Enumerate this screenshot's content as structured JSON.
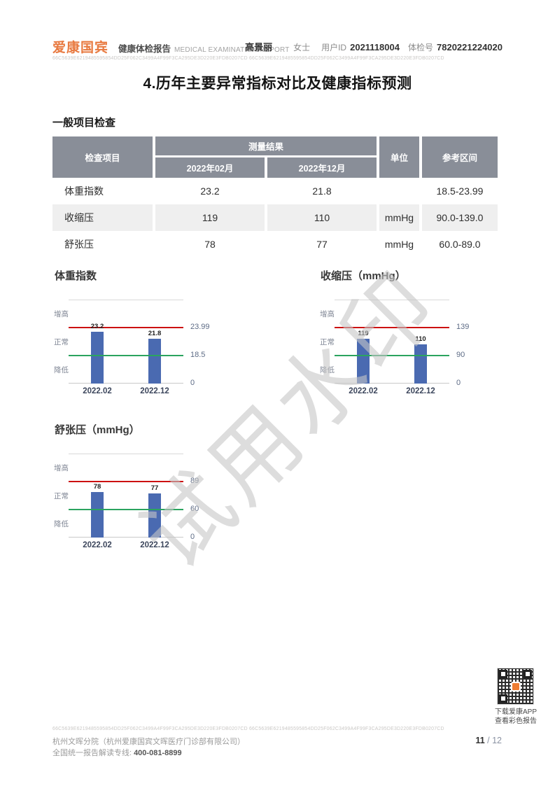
{
  "header": {
    "logo": "爱康国宾",
    "report_title": "健康体检报告",
    "report_title_en": "MEDICAL EXAMINATION REPORT",
    "patient_name": "高景丽",
    "gender": "女士",
    "user_id_label": "用户ID",
    "user_id": "2021118004",
    "exam_no_label": "体检号",
    "exam_no": "7820221224020",
    "hash_line": "66C5639E6219485595854DD25F062C3499A4F99F3CA295DE3D220E3FDB0207CD 66C5639E6219485595854DD25F062C3499A4F99F3CA295DE3D220E3FDB0207CD"
  },
  "page_title": "4.历年主要异常指标对比及健康指标预测",
  "section_title": "一般项目检查",
  "table": {
    "headers": {
      "item": "检查项目",
      "result": "测量结果",
      "date1": "2022年02月",
      "date2": "2022年12月",
      "unit": "单位",
      "range": "参考区间"
    },
    "rows": [
      {
        "name": "体重指数",
        "v1": "23.2",
        "v2": "21.8",
        "unit": "",
        "range": "18.5-23.99"
      },
      {
        "name": "收缩压",
        "v1": "119",
        "v2": "110",
        "unit": "mmHg",
        "range": "90.0-139.0"
      },
      {
        "name": "舒张压",
        "v1": "78",
        "v2": "77",
        "unit": "mmHg",
        "range": "60.0-89.0"
      }
    ]
  },
  "chart_data": [
    {
      "type": "bar",
      "title": "体重指数",
      "categories": [
        "2022.02",
        "2022.12"
      ],
      "values": [
        23.2,
        21.8
      ],
      "value_labels": [
        "23.2",
        "21.8"
      ],
      "ref_high": 23.99,
      "ref_low": 18.5,
      "ref_high_label": "23.99",
      "ref_low_label": "18.5",
      "baseline_label": "0",
      "band_labels": [
        "增高",
        "正常",
        "降低"
      ],
      "legend_position": "none",
      "grid": "top-and-baseline"
    },
    {
      "type": "bar",
      "title": "收缩压（mmHg）",
      "categories": [
        "2022.02",
        "2022.12"
      ],
      "values": [
        119,
        110
      ],
      "value_labels": [
        "119",
        "110"
      ],
      "ref_high": 139,
      "ref_low": 90,
      "ref_high_label": "139",
      "ref_low_label": "90",
      "baseline_label": "0",
      "band_labels": [
        "增高",
        "正常",
        "降低"
      ],
      "legend_position": "none",
      "grid": "top-and-baseline"
    },
    {
      "type": "bar",
      "title": "舒张压（mmHg）",
      "categories": [
        "2022.02",
        "2022.12"
      ],
      "values": [
        78,
        77
      ],
      "value_labels": [
        "78",
        "77"
      ],
      "ref_high": 89,
      "ref_low": 60,
      "ref_high_label": "89",
      "ref_low_label": "60",
      "baseline_label": "0",
      "band_labels": [
        "增高",
        "正常",
        "降低"
      ],
      "legend_position": "none",
      "grid": "top-and-baseline"
    }
  ],
  "watermark": "试用水印",
  "footer": {
    "hash_line": "66C5639E6219485595854DD25F062C3499A4F99F3CA295DE3D220E3FDB0207CD  66C5639E6219485595854DD25F062C3499A4F99F3CA295DE3D220E3FDB0207CD",
    "qr_caption_line1": "下载爱康APP",
    "qr_caption_line2": "查看彩色报告",
    "branch": "杭州文晖分院（杭州爱康国宾文晖医疗门诊部有限公司）",
    "hotline_label": "全国统一报告解读专线:",
    "hotline_number": "400-081-8899",
    "page_current": "11",
    "page_separator": " / ",
    "page_total": "12"
  },
  "colors": {
    "brand_orange": "#e8793f",
    "table_header_gray": "#898e98",
    "row_stripe": "#efefef",
    "bar_blue": "#4a6ab1",
    "ref_high_red": "#cc1111",
    "ref_low_green": "#2ba45f",
    "grid_gray": "#d9d9d9",
    "axis_gray": "#c9c9c9"
  }
}
